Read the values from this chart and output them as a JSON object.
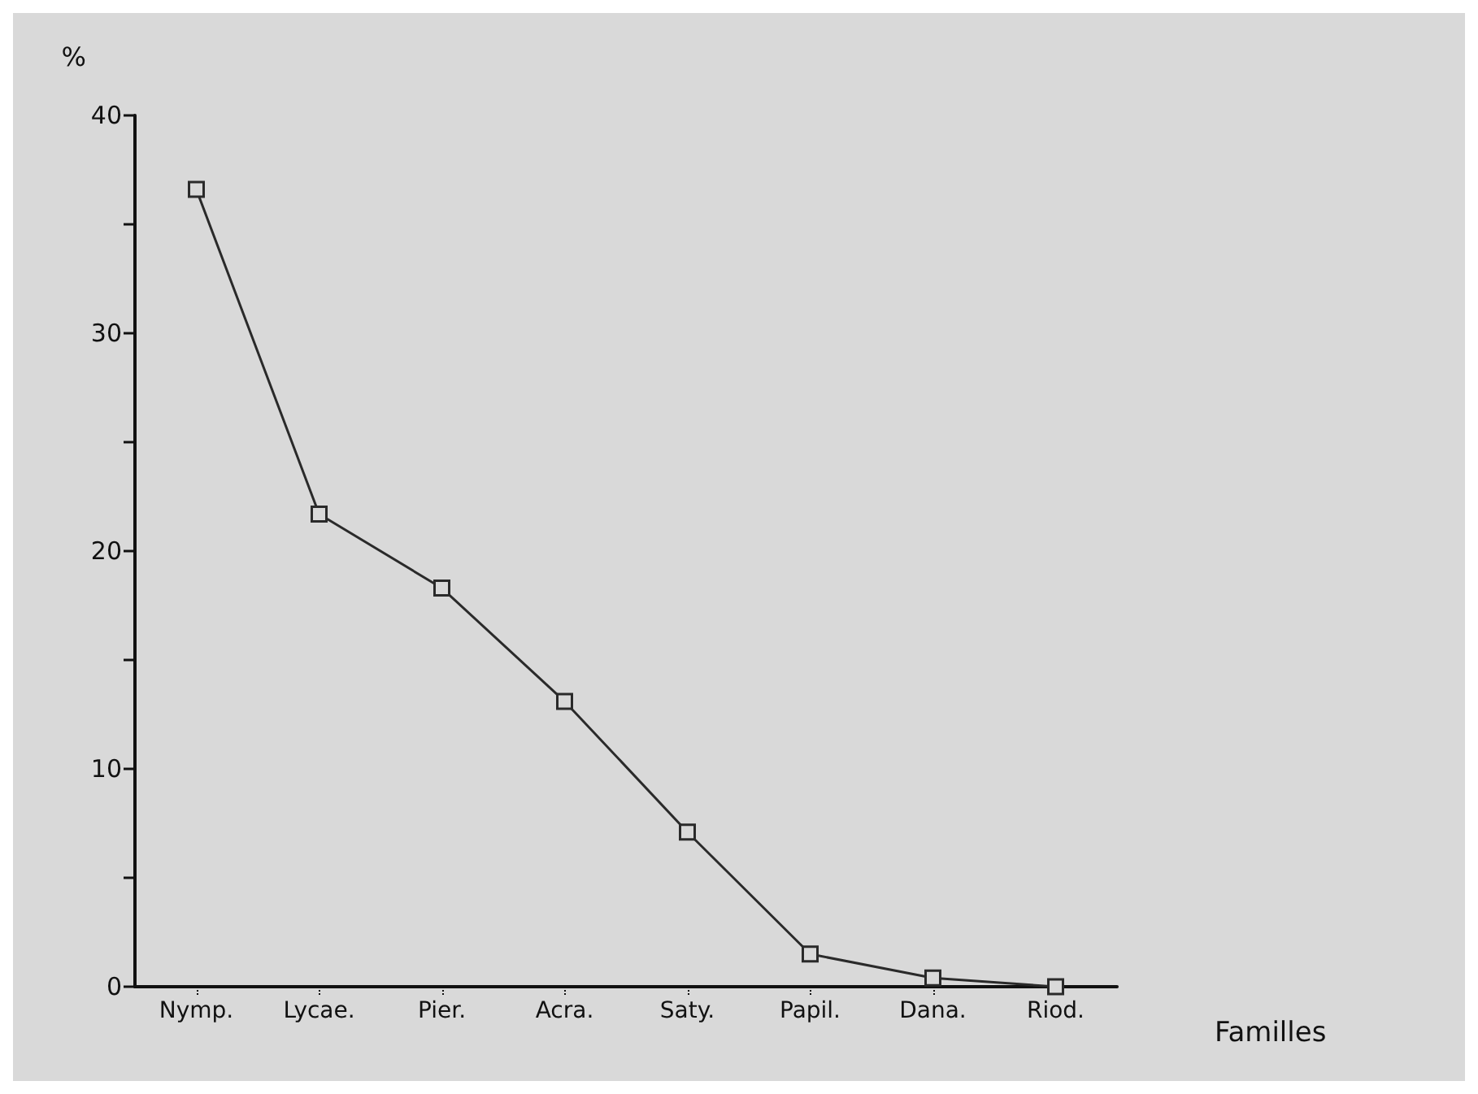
{
  "chart_data": {
    "type": "line",
    "xlabel": "Familles",
    "ylabel": "%",
    "categories": [
      "Nymp.",
      "Lycae.",
      "Pier.",
      "Acra.",
      "Saty.",
      "Papil.",
      "Dana.",
      "Riod."
    ],
    "series": [
      {
        "color": "#2a2a2a",
        "values": [
          36.6,
          21.7,
          18.3,
          13.1,
          7.1,
          1.5,
          0.4,
          0
        ]
      }
    ],
    "ylim": [
      0,
      40
    ],
    "yticks": [
      0,
      {
        "value": 5,
        "label": null
      },
      10,
      {
        "value": 15,
        "label": null
      },
      20,
      {
        "value": 25,
        "label": null
      },
      30,
      {
        "value": 35,
        "label": null
      },
      40
    ],
    "grid": false,
    "marker": "square",
    "line_style": "solid"
  }
}
